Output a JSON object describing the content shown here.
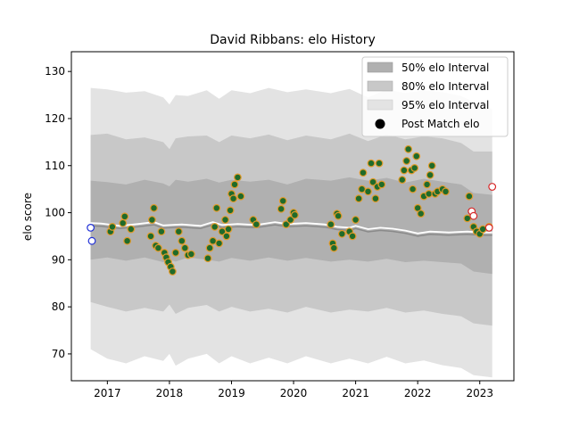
{
  "chart_data": {
    "type": "scatter",
    "title": "David Ribbans: elo History",
    "xlabel": "",
    "ylabel": "elo score",
    "xlim": [
      2016.42,
      2023.55
    ],
    "ylim": [
      64.3,
      134.2
    ],
    "x_ticks": [
      2017,
      2018,
      2019,
      2020,
      2021,
      2022,
      2023
    ],
    "y_ticks": [
      70,
      80,
      90,
      100,
      110,
      120,
      130
    ],
    "x_tick_labels": [
      "2017",
      "2018",
      "2019",
      "2020",
      "2021",
      "2022",
      "2023"
    ],
    "y_tick_labels": [
      "70",
      "80",
      "90",
      "100",
      "110",
      "120",
      "130"
    ],
    "legend": {
      "position": "top-right",
      "entries": [
        "50% elo Interval",
        "80% elo Interval",
        "95% elo Interval",
        "Post Match elo"
      ]
    },
    "colors": {
      "band50": "#b0b0b0",
      "band80": "#c8c8c8",
      "band95": "#e3e3e3",
      "marker_fill": "#1f6b2a",
      "marker_edge": "#e39a2a",
      "mean_line": "#ffffff",
      "mean_line_shadow": "#8a8a8a",
      "unplayed_blue": "#1f2fd6",
      "unplayed_red": "#d62728"
    },
    "bands": {
      "x": [
        2016.73,
        2017.0,
        2017.3,
        2017.6,
        2017.9,
        2018.0,
        2018.1,
        2018.3,
        2018.6,
        2018.8,
        2019.0,
        2019.3,
        2019.6,
        2019.9,
        2020.2,
        2020.6,
        2020.9,
        2021.2,
        2021.5,
        2021.8,
        2022.1,
        2022.4,
        2022.7,
        2022.9,
        2023.2
      ],
      "upper95": [
        126.5,
        126.2,
        125.5,
        125.8,
        124.5,
        123.0,
        125.0,
        124.8,
        126.0,
        124.2,
        126.0,
        125.4,
        126.5,
        125.6,
        126.2,
        125.4,
        126.3,
        124.5,
        126.2,
        125.4,
        126.0,
        125.6,
        124.8,
        123.5,
        122.0
      ],
      "upper80": [
        116.5,
        116.8,
        115.6,
        116.0,
        115.0,
        113.5,
        115.8,
        116.2,
        116.4,
        115.0,
        116.4,
        115.8,
        116.6,
        115.4,
        116.4,
        115.6,
        116.8,
        115.2,
        116.6,
        115.6,
        116.2,
        115.8,
        114.8,
        113.0,
        113.0
      ],
      "upper50": [
        106.8,
        106.5,
        106.0,
        107.0,
        106.2,
        105.6,
        107.0,
        106.6,
        107.2,
        106.4,
        107.0,
        106.6,
        107.0,
        106.0,
        107.2,
        106.8,
        107.5,
        106.8,
        107.4,
        106.4,
        107.2,
        106.6,
        106.0,
        104.2,
        103.8
      ],
      "lower50": [
        90.0,
        90.5,
        89.8,
        90.5,
        89.5,
        90.0,
        89.6,
        90.5,
        90.0,
        89.6,
        90.4,
        89.8,
        90.5,
        89.8,
        90.4,
        89.6,
        90.0,
        89.6,
        90.2,
        89.5,
        89.8,
        89.5,
        89.2,
        87.5,
        87.0
      ],
      "lower80": [
        81.0,
        80.0,
        79.0,
        79.8,
        79.0,
        80.5,
        78.5,
        79.8,
        80.4,
        79.0,
        80.0,
        79.0,
        79.6,
        78.8,
        80.0,
        78.8,
        79.4,
        79.0,
        79.8,
        78.8,
        79.2,
        78.5,
        78.0,
        76.5,
        76.0
      ],
      "lower95": [
        71.0,
        69.0,
        68.0,
        69.5,
        68.5,
        70.0,
        67.5,
        69.0,
        70.0,
        68.0,
        69.5,
        68.0,
        69.2,
        68.0,
        69.5,
        68.0,
        69.0,
        68.0,
        69.4,
        68.0,
        68.6,
        67.6,
        67.0,
        65.5,
        65.0
      ]
    },
    "mean_line": {
      "x": [
        2016.73,
        2016.9,
        2017.2,
        2017.5,
        2017.75,
        2017.9,
        2018.2,
        2018.5,
        2018.7,
        2018.85,
        2019.1,
        2019.4,
        2019.7,
        2019.9,
        2020.2,
        2020.5,
        2020.7,
        2020.9,
        2021.0,
        2021.2,
        2021.4,
        2021.6,
        2021.8,
        2022.0,
        2022.2,
        2022.5,
        2022.8,
        2023.0,
        2023.2
      ],
      "y": [
        97.8,
        97.7,
        97.2,
        97.6,
        98.0,
        97.3,
        97.5,
        97.2,
        98.0,
        97.4,
        97.6,
        97.4,
        98.0,
        97.6,
        97.8,
        97.5,
        97.0,
        96.8,
        97.2,
        96.5,
        96.8,
        96.6,
        96.2,
        95.6,
        96.0,
        95.8,
        96.0,
        95.8,
        95.8
      ]
    },
    "points": {
      "x": [
        2017.05,
        2017.08,
        2017.25,
        2017.28,
        2017.32,
        2017.38,
        2017.7,
        2017.72,
        2017.75,
        2017.78,
        2017.82,
        2017.87,
        2017.92,
        2017.95,
        2017.98,
        2018.02,
        2018.05,
        2018.1,
        2018.15,
        2018.2,
        2018.25,
        2018.3,
        2018.35,
        2018.62,
        2018.65,
        2018.7,
        2018.73,
        2018.76,
        2018.8,
        2018.85,
        2018.9,
        2018.92,
        2018.95,
        2018.98,
        2019.0,
        2019.03,
        2019.05,
        2019.1,
        2019.15,
        2019.35,
        2019.4,
        2019.8,
        2019.83,
        2019.88,
        2019.95,
        2020.0,
        2020.02,
        2020.6,
        2020.63,
        2020.65,
        2020.7,
        2020.72,
        2020.78,
        2020.9,
        2020.95,
        2021.0,
        2021.05,
        2021.1,
        2021.12,
        2021.2,
        2021.25,
        2021.28,
        2021.32,
        2021.35,
        2021.38,
        2021.42,
        2021.75,
        2021.78,
        2021.82,
        2021.85,
        2021.9,
        2021.92,
        2021.95,
        2021.98,
        2022.0,
        2022.05,
        2022.1,
        2022.15,
        2022.18,
        2022.2,
        2022.23,
        2022.28,
        2022.32,
        2022.4,
        2022.45,
        2022.8,
        2022.83,
        2022.9,
        2022.95,
        2023.0,
        2023.05,
        2023.15
      ],
      "y": [
        96.0,
        97.0,
        97.8,
        99.2,
        94.0,
        96.5,
        95.0,
        98.5,
        101.0,
        93.0,
        92.5,
        96.0,
        91.5,
        90.5,
        89.5,
        88.5,
        87.5,
        91.5,
        96.0,
        94.0,
        92.5,
        91.0,
        91.2,
        90.3,
        92.5,
        94.0,
        97.0,
        101.0,
        93.5,
        96.0,
        98.5,
        95.0,
        96.5,
        100.5,
        104.0,
        103.0,
        106.0,
        107.5,
        103.5,
        98.5,
        97.5,
        100.8,
        102.5,
        97.5,
        98.5,
        100.0,
        99.5,
        97.5,
        93.5,
        92.5,
        99.8,
        99.3,
        95.5,
        96.0,
        95.0,
        98.5,
        103.0,
        105.0,
        108.5,
        104.5,
        110.5,
        106.5,
        103.0,
        105.5,
        110.5,
        106.0,
        107.0,
        109.0,
        111.0,
        113.5,
        109.0,
        105.0,
        109.5,
        112.0,
        101.0,
        99.8,
        103.5,
        106.0,
        104.0,
        108.0,
        110.0,
        104.0,
        104.5,
        105.0,
        104.5,
        98.8,
        103.5,
        97.0,
        96.0,
        95.5,
        96.5,
        97.0
      ]
    },
    "unplayed_points": [
      {
        "x": 2016.73,
        "y": 96.8,
        "color": "blue"
      },
      {
        "x": 2016.75,
        "y": 94.0,
        "color": "blue"
      },
      {
        "x": 2022.87,
        "y": 100.3,
        "color": "red"
      },
      {
        "x": 2022.9,
        "y": 99.3,
        "color": "red"
      },
      {
        "x": 2023.15,
        "y": 96.8,
        "color": "red"
      },
      {
        "x": 2023.2,
        "y": 105.5,
        "color": "red"
      }
    ]
  }
}
